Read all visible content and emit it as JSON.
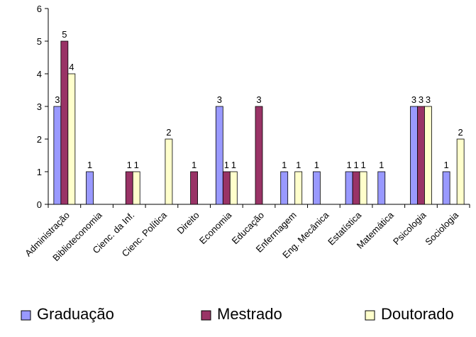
{
  "chart_data": {
    "type": "bar",
    "title": "",
    "xlabel": "",
    "ylabel": "",
    "ylim": [
      0,
      6
    ],
    "yticks": [
      "0",
      "1",
      "2",
      "3",
      "4",
      "5",
      "6"
    ],
    "grid": false,
    "legend_position": "bottom",
    "categories": [
      "Administração",
      "Biblioteconomia",
      "Cienc. da Inf.",
      "Cienc. Política",
      "Direito",
      "Economia",
      "Educação",
      "Enfermagem",
      "Eng. Mecânica",
      "Estatística",
      "Matemática",
      "Psicologia",
      "Sociologia"
    ],
    "series": [
      {
        "name": "Graduação",
        "color": "#9999ff",
        "values": [
          3,
          1,
          0,
          0,
          0,
          3,
          0,
          1,
          1,
          1,
          1,
          3,
          1
        ]
      },
      {
        "name": "Mestrado",
        "color": "#993366",
        "values": [
          5,
          0,
          1,
          0,
          1,
          1,
          3,
          0,
          0,
          1,
          0,
          3,
          0
        ]
      },
      {
        "name": "Doutorado",
        "color": "#ffffcc",
        "values": [
          4,
          0,
          1,
          2,
          0,
          1,
          0,
          1,
          0,
          1,
          0,
          3,
          2
        ]
      }
    ]
  }
}
